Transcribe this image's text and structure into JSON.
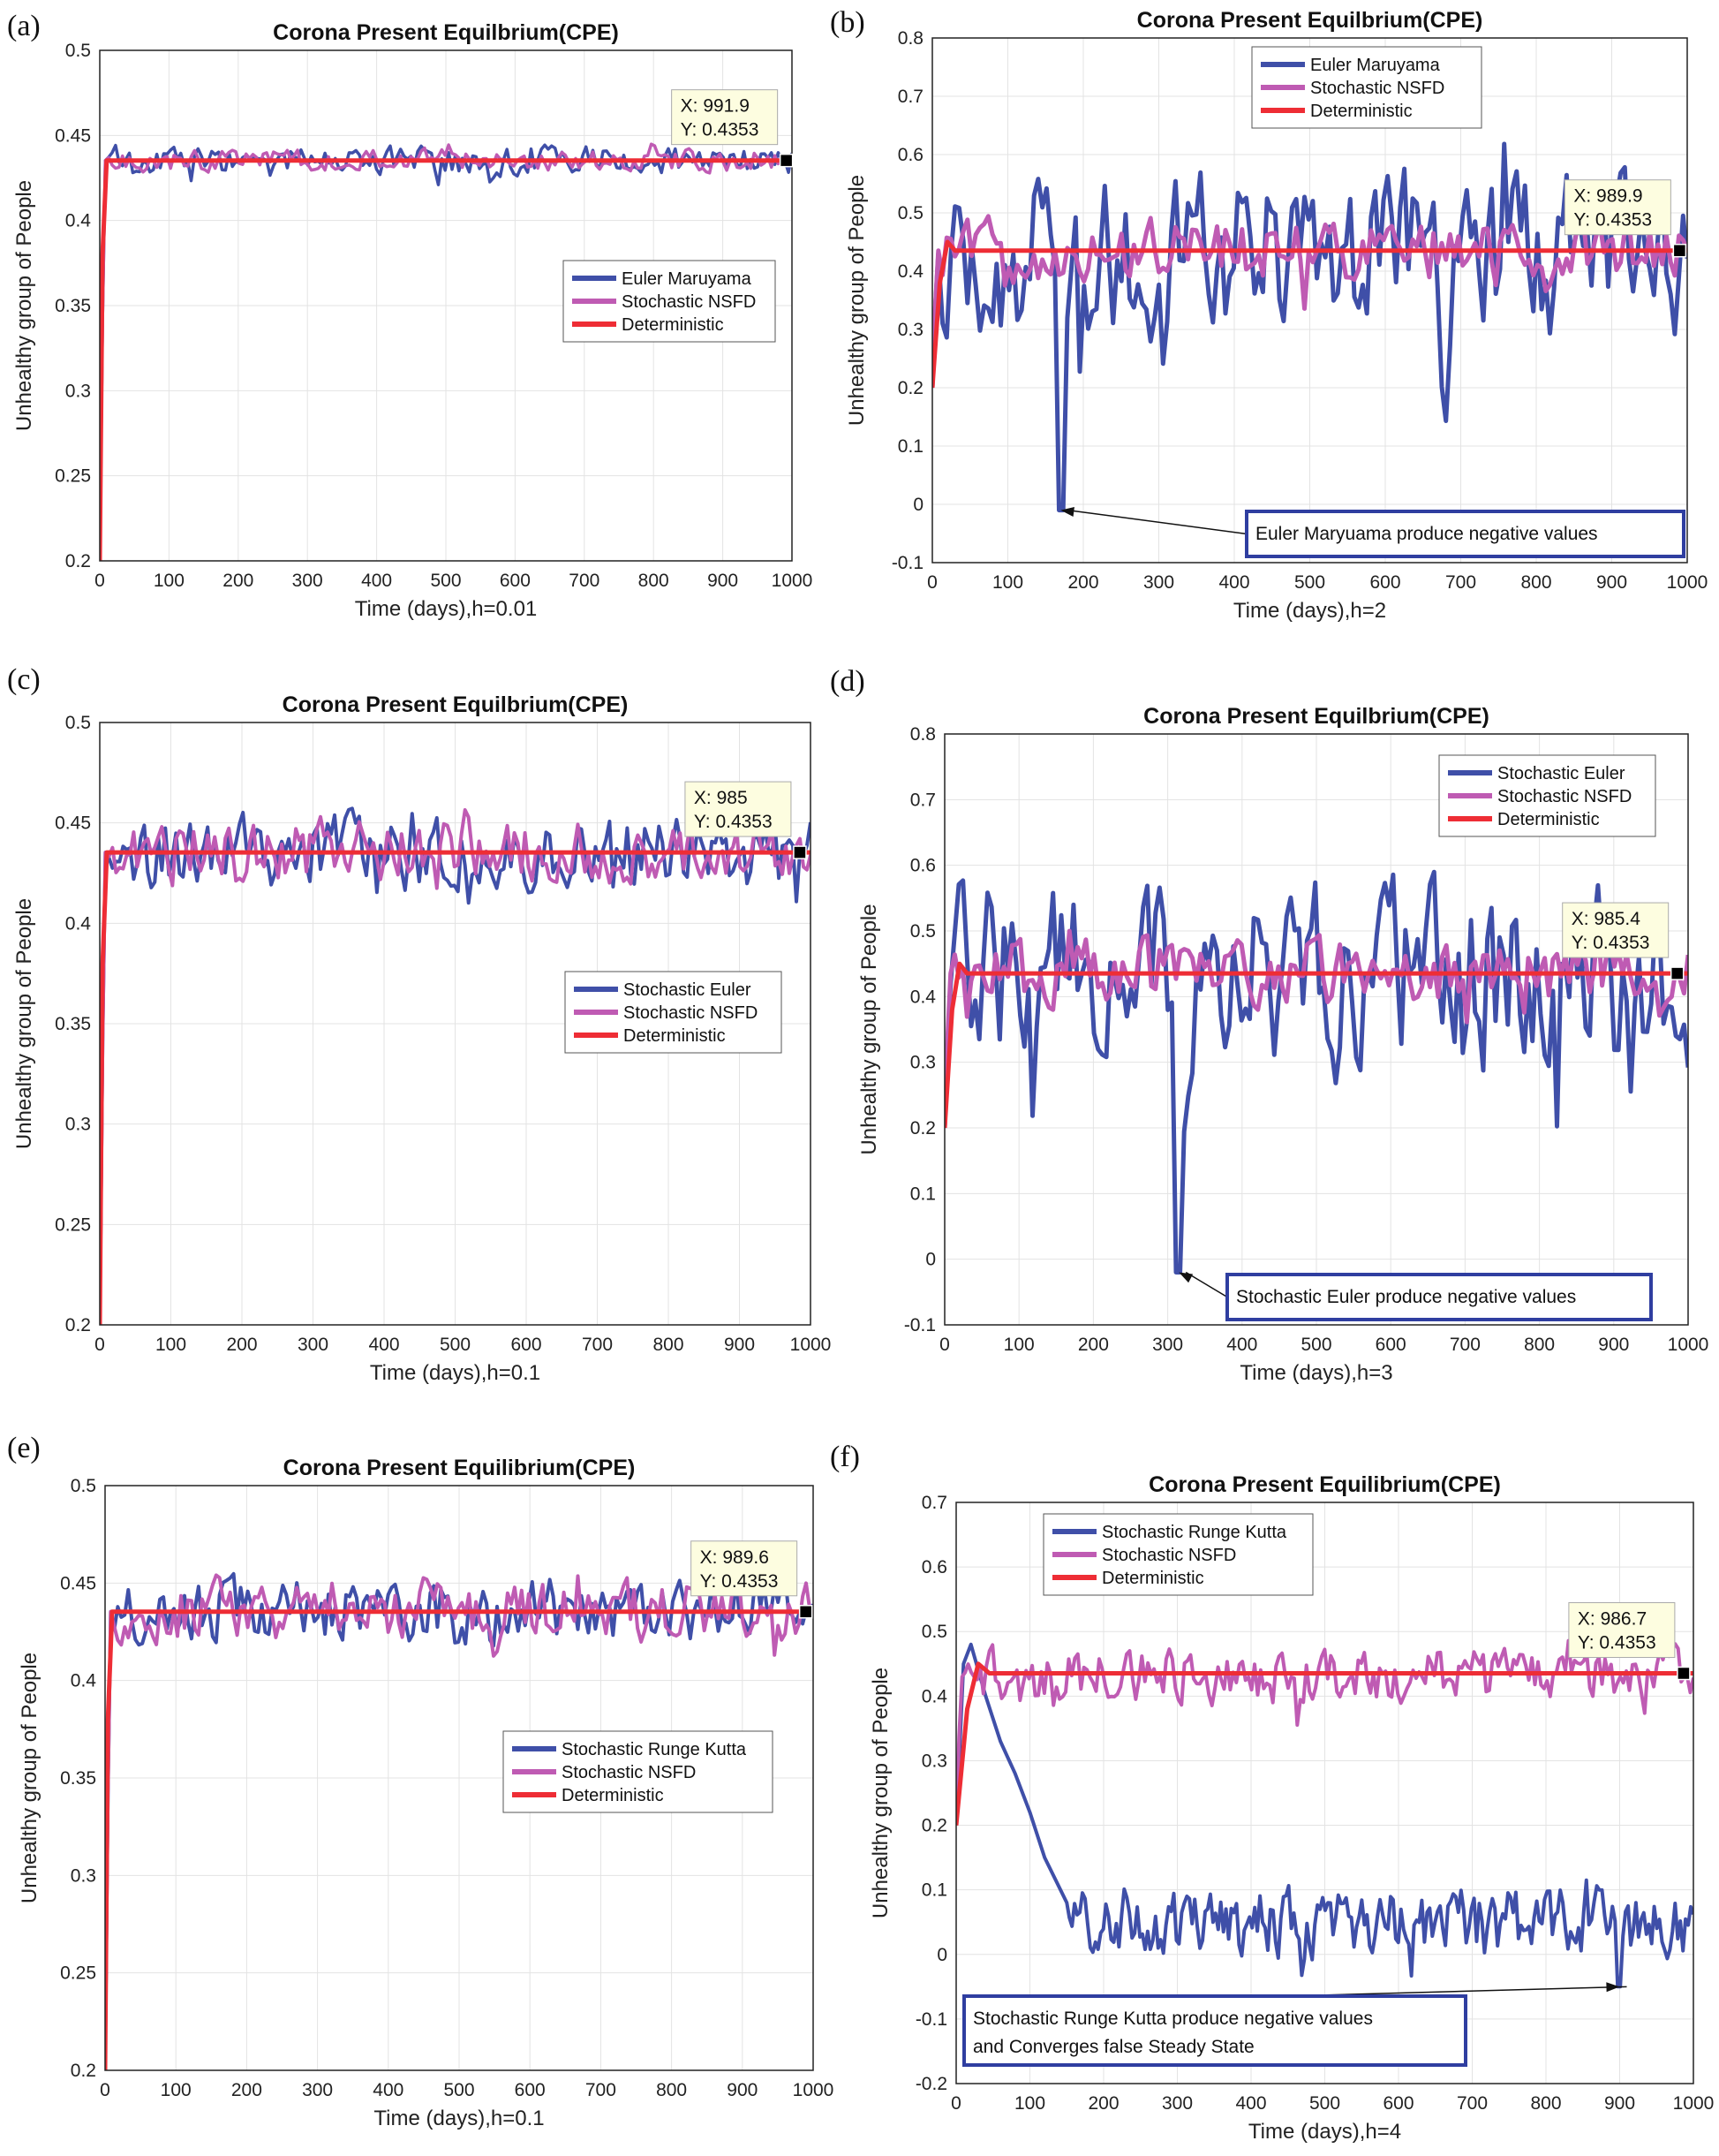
{
  "colors": {
    "euler": "#3f4fa8",
    "nsfd": "#bf5bb3",
    "det": "#ee2d35",
    "note_border": "#2f3ea0",
    "tip_bg": "#fdfde0"
  },
  "chart_data": [
    {
      "type": "line",
      "label": "(a)",
      "title": "Corona Present Equilbrium(CPE)",
      "xlabel": "Time (days),h=0.01",
      "ylabel": "Unhealthy group of People",
      "xlim": [
        0,
        1000
      ],
      "ylim": [
        0.2,
        0.5
      ],
      "xticks": [
        0,
        100,
        200,
        300,
        400,
        500,
        600,
        700,
        800,
        900,
        1000
      ],
      "yticks": [
        0.2,
        0.25,
        0.3,
        0.35,
        0.4,
        0.45,
        0.5
      ],
      "grid": true,
      "legend_position": "center-right",
      "series": [
        {
          "name": "Euler Maruyama",
          "color": "euler",
          "mean": 0.4353,
          "noise": 0.008,
          "steps": 200,
          "width": 3.5,
          "start": 0.2
        },
        {
          "name": "Stochastic NSFD",
          "color": "nsfd",
          "mean": 0.4353,
          "noise": 0.006,
          "steps": 200,
          "width": 3.5,
          "start": 0.2
        },
        {
          "name": "Deterministic",
          "color": "det",
          "x": [
            0,
            4,
            10,
            1000
          ],
          "y": [
            0.2,
            0.38,
            0.4353,
            0.4353
          ],
          "width": 5
        }
      ],
      "datatip": {
        "x": 991.9,
        "y": 0.4353,
        "x_text": "X: 991.9",
        "y_text": "Y: 0.4353"
      },
      "annotation": null
    },
    {
      "type": "line",
      "label": "(b)",
      "title": "Corona Present Equilbrium(CPE)",
      "xlabel": "Time (days),h=2",
      "ylabel": "Unhealthy group of People",
      "xlim": [
        0,
        1000
      ],
      "ylim": [
        -0.1,
        0.8
      ],
      "xticks": [
        0,
        100,
        200,
        300,
        400,
        500,
        600,
        700,
        800,
        900,
        1000
      ],
      "yticks": [
        -0.1,
        0,
        0.1,
        0.2,
        0.3,
        0.4,
        0.5,
        0.6,
        0.7,
        0.8
      ],
      "grid": true,
      "legend_position": "top-left",
      "series": [
        {
          "name": "Euler Maruyama",
          "color": "euler",
          "mean": 0.43,
          "noise": 0.13,
          "steps": 180,
          "width": 5,
          "start": 0.2,
          "min_point": {
            "x": 170,
            "y": -0.01
          }
        },
        {
          "name": "Stochastic NSFD",
          "color": "nsfd",
          "mean": 0.4353,
          "noise": 0.05,
          "steps": 180,
          "width": 5,
          "start": 0.2
        },
        {
          "name": "Deterministic",
          "color": "det",
          "x": [
            0,
            10,
            20,
            30,
            1000
          ],
          "y": [
            0.2,
            0.38,
            0.45,
            0.4353,
            0.4353
          ],
          "width": 5
        }
      ],
      "datatip": {
        "x": 989.9,
        "y": 0.4353,
        "x_text": "X: 989.9",
        "y_text": "Y: 0.4353"
      },
      "annotation": {
        "text": "Euler Maryuama produce negative values",
        "x": 170,
        "y": -0.01
      }
    },
    {
      "type": "line",
      "label": "(c)",
      "title": "Corona Present Equilbrium(CPE)",
      "xlabel": "Time (days),h=0.1",
      "ylabel": "Unhealthy group of People",
      "xlim": [
        0,
        1000
      ],
      "ylim": [
        0.2,
        0.5
      ],
      "xticks": [
        0,
        100,
        200,
        300,
        400,
        500,
        600,
        700,
        800,
        900,
        1000
      ],
      "yticks": [
        0.2,
        0.25,
        0.3,
        0.35,
        0.4,
        0.45,
        0.5
      ],
      "grid": true,
      "legend_position": "center-right",
      "series": [
        {
          "name": "Stochastic Euler",
          "color": "euler",
          "mean": 0.4353,
          "noise": 0.017,
          "steps": 200,
          "width": 4,
          "start": 0.2
        },
        {
          "name": "Stochastic NSFD",
          "color": "nsfd",
          "mean": 0.4353,
          "noise": 0.015,
          "steps": 200,
          "width": 4,
          "start": 0.2
        },
        {
          "name": "Deterministic",
          "color": "det",
          "x": [
            0,
            4,
            10,
            1000
          ],
          "y": [
            0.2,
            0.38,
            0.4353,
            0.4353
          ],
          "width": 5
        }
      ],
      "datatip": {
        "x": 985,
        "y": 0.4353,
        "x_text": "X: 985",
        "y_text": "Y: 0.4353"
      },
      "annotation": null
    },
    {
      "type": "line",
      "label": "(d)",
      "title": "Corona Present Equilbrium(CPE)",
      "xlabel": "Time (days),h=3",
      "ylabel": "Unhealthy group of People",
      "xlim": [
        0,
        1000
      ],
      "ylim": [
        -0.1,
        0.8
      ],
      "xticks": [
        0,
        100,
        200,
        300,
        400,
        500,
        600,
        700,
        800,
        900,
        1000
      ],
      "yticks": [
        -0.1,
        0,
        0.1,
        0.2,
        0.3,
        0.4,
        0.5,
        0.6,
        0.7,
        0.8
      ],
      "grid": true,
      "legend_position": "top-right",
      "series": [
        {
          "name": "Stochastic Euler",
          "color": "euler",
          "mean": 0.42,
          "noise": 0.14,
          "steps": 180,
          "width": 5,
          "start": 0.2,
          "min_point": {
            "x": 315,
            "y": -0.02
          }
        },
        {
          "name": "Stochastic NSFD",
          "color": "nsfd",
          "mean": 0.4353,
          "noise": 0.05,
          "steps": 180,
          "width": 5,
          "start": 0.2
        },
        {
          "name": "Deterministic",
          "color": "det",
          "x": [
            0,
            10,
            20,
            30,
            1000
          ],
          "y": [
            0.2,
            0.38,
            0.45,
            0.4353,
            0.4353
          ],
          "width": 5
        }
      ],
      "datatip": {
        "x": 985.4,
        "y": 0.4353,
        "x_text": "X: 985.4",
        "y_text": "Y: 0.4353"
      },
      "annotation": {
        "text": "Stochastic Euler produce negative values",
        "x": 315,
        "y": -0.02
      }
    },
    {
      "type": "line",
      "label": "(e)",
      "title": "Corona Present Equilibrium(CPE)",
      "xlabel": "Time (days),h=0.1",
      "ylabel": "Unhealthy group of People",
      "xlim": [
        0,
        1000
      ],
      "ylim": [
        0.2,
        0.5
      ],
      "xticks": [
        0,
        100,
        200,
        300,
        400,
        500,
        600,
        700,
        800,
        900,
        1000
      ],
      "yticks": [
        0.2,
        0.25,
        0.3,
        0.35,
        0.4,
        0.45,
        0.5
      ],
      "grid": true,
      "legend_position": "center-right",
      "series": [
        {
          "name": "Stochastic Runge Kutta",
          "color": "euler",
          "mean": 0.4353,
          "noise": 0.016,
          "steps": 200,
          "width": 4,
          "start": 0.2
        },
        {
          "name": "Stochastic NSFD",
          "color": "nsfd",
          "mean": 0.4353,
          "noise": 0.014,
          "steps": 200,
          "width": 4,
          "start": 0.2
        },
        {
          "name": "Deterministic",
          "color": "det",
          "x": [
            0,
            4,
            10,
            1000
          ],
          "y": [
            0.2,
            0.38,
            0.4353,
            0.4353
          ],
          "width": 5
        }
      ],
      "datatip": {
        "x": 989.6,
        "y": 0.4353,
        "x_text": "X: 989.6",
        "y_text": "Y: 0.4353"
      },
      "annotation": null
    },
    {
      "type": "line",
      "label": "(f)",
      "title": "Corona Present Equilibrium(CPE)",
      "xlabel": "Time (days),h=4",
      "ylabel": "Unhealthy group of People",
      "xlim": [
        0,
        1000
      ],
      "ylim": [
        -0.2,
        0.7
      ],
      "xticks": [
        0,
        100,
        200,
        300,
        400,
        500,
        600,
        700,
        800,
        900,
        1000
      ],
      "yticks": [
        -0.2,
        -0.1,
        0,
        0.1,
        0.2,
        0.3,
        0.4,
        0.5,
        0.6,
        0.7
      ],
      "grid": true,
      "legend_position": "top-left",
      "series": [
        {
          "name": "Stochastic Runge Kutta",
          "color": "euler",
          "mean": 0.05,
          "noise": 0.05,
          "steps": 240,
          "width": 4,
          "start": 0.2,
          "path": [
            [
              0,
              0.2
            ],
            [
              10,
              0.45
            ],
            [
              20,
              0.48
            ],
            [
              40,
              0.4
            ],
            [
              60,
              0.33
            ],
            [
              80,
              0.28
            ],
            [
              100,
              0.22
            ],
            [
              120,
              0.15
            ],
            [
              150,
              0.08
            ]
          ],
          "min_point": {
            "x": 900,
            "y": -0.05
          }
        },
        {
          "name": "Stochastic NSFD",
          "color": "nsfd",
          "mean": 0.43,
          "noise": 0.04,
          "steps": 240,
          "width": 4,
          "start": 0.2
        },
        {
          "name": "Deterministic",
          "color": "det",
          "x": [
            0,
            15,
            30,
            45,
            1000
          ],
          "y": [
            0.2,
            0.38,
            0.45,
            0.4353,
            0.4353
          ],
          "width": 5
        }
      ],
      "datatip": {
        "x": 986.7,
        "y": 0.4353,
        "x_text": "X: 986.7",
        "y_text": "Y: 0.4353"
      },
      "annotation": {
        "text": "Stochastic Runge Kutta produce negative values",
        "text2": "and Converges false Steady State",
        "x": 900,
        "y": -0.05
      }
    }
  ]
}
